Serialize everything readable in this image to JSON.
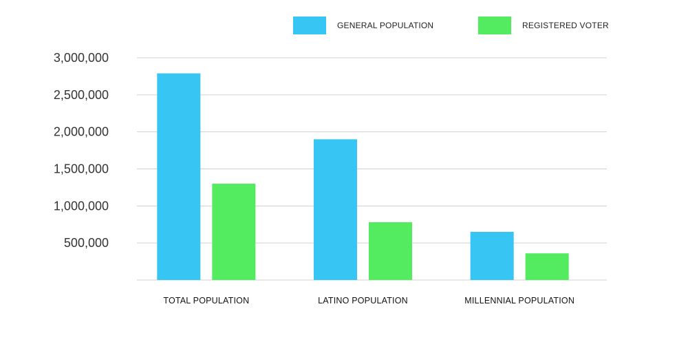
{
  "chart_data": {
    "type": "bar",
    "title": "",
    "xlabel": "",
    "ylabel": "",
    "categories": [
      "TOTAL POPULATION",
      "LATINO POPULATION",
      "MILLENNIAL POPULATION"
    ],
    "series": [
      {
        "name": "GENERAL POPULATION",
        "color": "#37c5f3",
        "values": [
          2790000,
          1900000,
          650000
        ]
      },
      {
        "name": "REGISTERED VOTER",
        "color": "#53eb5f",
        "values": [
          1300000,
          780000,
          360000
        ]
      }
    ],
    "ylim": [
      0,
      3000000
    ],
    "yticks": [
      500000,
      1000000,
      1500000,
      2000000,
      2500000,
      3000000
    ],
    "ytick_labels": [
      "500,000",
      "1,000,000",
      "1,500,000",
      "2,000,000",
      "2,500,000",
      "3,000,000"
    ],
    "grid": true,
    "legend_position": "top-right"
  }
}
